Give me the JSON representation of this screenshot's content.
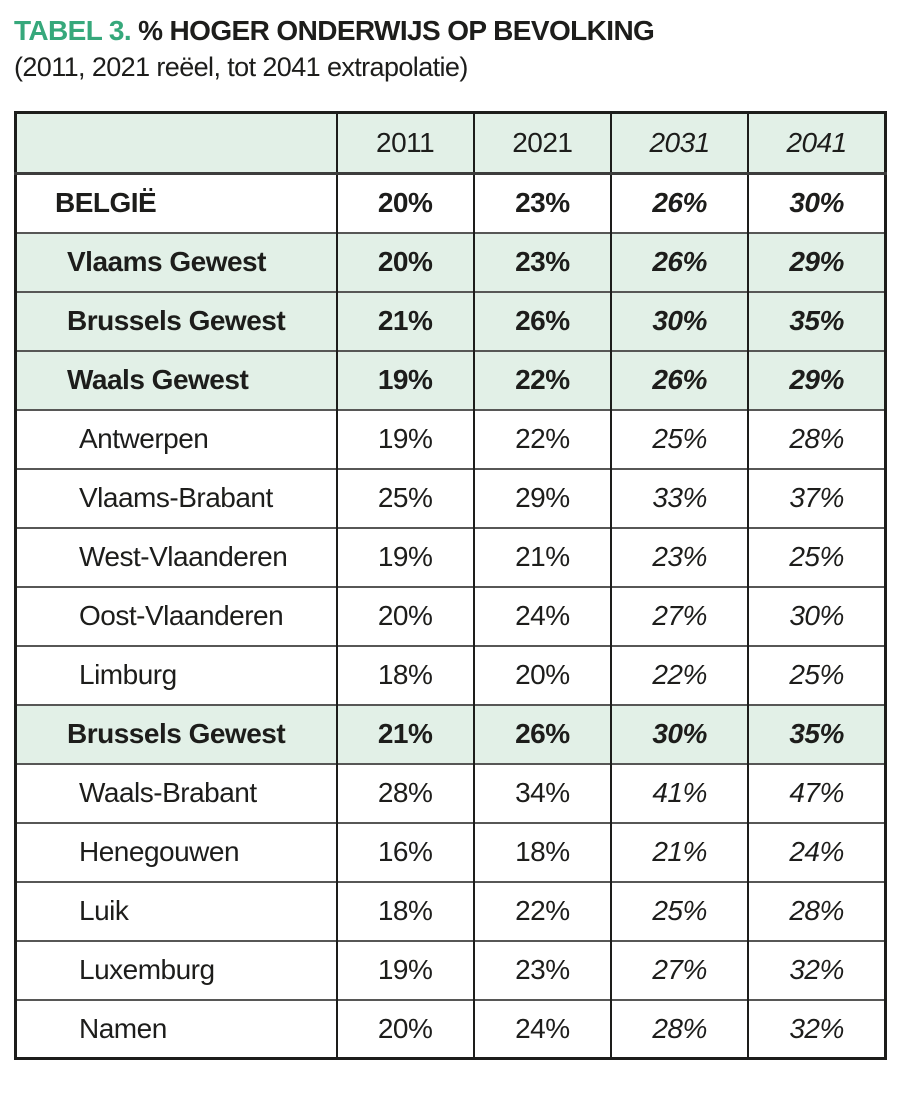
{
  "header": {
    "tabel_label": "TABEL 3.",
    "title": "% HOGER ONDERWIJS OP BEVOLKING",
    "subtitle": "(2011, 2021 reëel, tot 2041 extrapolatie)"
  },
  "colors": {
    "accent_green": "#36a87b",
    "row_green": "#e2f0e7",
    "text": "#1d1d1b",
    "v_line": "#1d1d1b",
    "h_line": "#575756"
  },
  "chart_data": {
    "type": "table",
    "title": "TABEL 3. % HOGER ONDERWIJS OP BEVOLKING",
    "subtitle": "(2011, 2021 reëel, tot 2041 extrapolatie)",
    "legend_note": "2031 and 2041 columns are italic because they are extrapolated values",
    "columns": [
      {
        "label": "",
        "italic": false
      },
      {
        "label": "2011",
        "italic": false
      },
      {
        "label": "2021",
        "italic": false
      },
      {
        "label": "2031",
        "italic": true
      },
      {
        "label": "2041",
        "italic": true
      }
    ],
    "rows": [
      {
        "label": "BELGIË",
        "type": "country",
        "bold": true,
        "green": false,
        "values": [
          "20%",
          "23%",
          "26%",
          "30%"
        ]
      },
      {
        "label": "Vlaams Gewest",
        "type": "region",
        "bold": true,
        "green": true,
        "values": [
          "20%",
          "23%",
          "26%",
          "29%"
        ]
      },
      {
        "label": "Brussels Gewest",
        "type": "region",
        "bold": true,
        "green": true,
        "values": [
          "21%",
          "26%",
          "30%",
          "35%"
        ]
      },
      {
        "label": "Waals Gewest",
        "type": "region",
        "bold": true,
        "green": true,
        "values": [
          "19%",
          "22%",
          "26%",
          "29%"
        ]
      },
      {
        "label": "Antwerpen",
        "type": "province",
        "bold": false,
        "green": false,
        "values": [
          "19%",
          "22%",
          "25%",
          "28%"
        ]
      },
      {
        "label": "Vlaams-Brabant",
        "type": "province",
        "bold": false,
        "green": false,
        "values": [
          "25%",
          "29%",
          "33%",
          "37%"
        ]
      },
      {
        "label": "West-Vlaanderen",
        "type": "province",
        "bold": false,
        "green": false,
        "values": [
          "19%",
          "21%",
          "23%",
          "25%"
        ]
      },
      {
        "label": "Oost-Vlaanderen",
        "type": "province",
        "bold": false,
        "green": false,
        "values": [
          "20%",
          "24%",
          "27%",
          "30%"
        ]
      },
      {
        "label": "Limburg",
        "type": "province",
        "bold": false,
        "green": false,
        "values": [
          "18%",
          "20%",
          "22%",
          "25%"
        ]
      },
      {
        "label": "Brussels Gewest",
        "type": "region",
        "bold": true,
        "green": true,
        "values": [
          "21%",
          "26%",
          "30%",
          "35%"
        ]
      },
      {
        "label": "Waals-Brabant",
        "type": "province",
        "bold": false,
        "green": false,
        "values": [
          "28%",
          "34%",
          "41%",
          "47%"
        ]
      },
      {
        "label": "Henegouwen",
        "type": "province",
        "bold": false,
        "green": false,
        "values": [
          "16%",
          "18%",
          "21%",
          "24%"
        ]
      },
      {
        "label": "Luik",
        "type": "province",
        "bold": false,
        "green": false,
        "values": [
          "18%",
          "22%",
          "25%",
          "28%"
        ]
      },
      {
        "label": "Luxemburg",
        "type": "province",
        "bold": false,
        "green": false,
        "values": [
          "19%",
          "23%",
          "27%",
          "32%"
        ]
      },
      {
        "label": "Namen",
        "type": "province",
        "bold": false,
        "green": false,
        "values": [
          "20%",
          "24%",
          "28%",
          "32%"
        ]
      }
    ]
  }
}
